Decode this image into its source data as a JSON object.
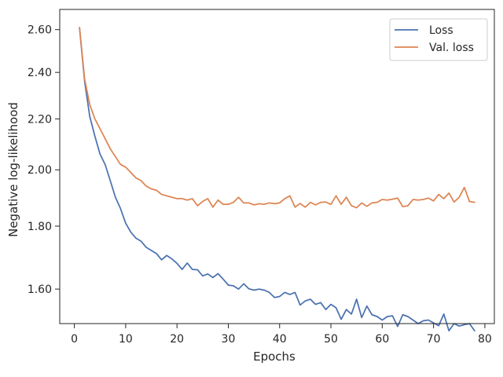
{
  "chart_data": {
    "type": "line",
    "title": "",
    "xlabel": "Epochs",
    "ylabel": "Negative log-likelihood",
    "xlim": [
      -2.85,
      81.85
    ],
    "ylim": [
      1.5,
      2.7
    ],
    "y_scale": "log",
    "grid": false,
    "legend_position": "top-right",
    "x_ticks": [
      {
        "value": 0,
        "label": "0"
      },
      {
        "value": 10,
        "label": "10"
      },
      {
        "value": 20,
        "label": "20"
      },
      {
        "value": 30,
        "label": "30"
      },
      {
        "value": 40,
        "label": "40"
      },
      {
        "value": 50,
        "label": "50"
      },
      {
        "value": 60,
        "label": "60"
      },
      {
        "value": 70,
        "label": "70"
      },
      {
        "value": 80,
        "label": "80"
      }
    ],
    "y_ticks": [
      {
        "value": 1.6,
        "label": "1.60"
      },
      {
        "value": 1.8,
        "label": "1.80"
      },
      {
        "value": 2.0,
        "label": "2.00"
      },
      {
        "value": 2.2,
        "label": "2.20"
      },
      {
        "value": 2.4,
        "label": "2.40"
      },
      {
        "value": 2.6,
        "label": "2.60"
      }
    ],
    "x": [
      1,
      2,
      3,
      4,
      5,
      6,
      7,
      8,
      9,
      10,
      11,
      12,
      13,
      14,
      15,
      16,
      17,
      18,
      19,
      20,
      21,
      22,
      23,
      24,
      25,
      26,
      27,
      28,
      29,
      30,
      31,
      32,
      33,
      34,
      35,
      36,
      37,
      38,
      39,
      40,
      41,
      42,
      43,
      44,
      45,
      46,
      47,
      48,
      49,
      50,
      51,
      52,
      53,
      54,
      55,
      56,
      57,
      58,
      59,
      60,
      61,
      62,
      63,
      64,
      65,
      66,
      67,
      68,
      69,
      70,
      71,
      72,
      73,
      74,
      75,
      76,
      77,
      78
    ],
    "series": [
      {
        "name": "Loss",
        "color": "#4c72b0",
        "values": [
          2.61,
          2.36,
          2.21,
          2.13,
          2.06,
          2.02,
          1.96,
          1.9,
          1.86,
          1.81,
          1.78,
          1.76,
          1.75,
          1.73,
          1.72,
          1.71,
          1.69,
          1.704,
          1.693,
          1.679,
          1.66,
          1.68,
          1.66,
          1.659,
          1.64,
          1.646,
          1.635,
          1.647,
          1.63,
          1.612,
          1.61,
          1.6,
          1.616,
          1.601,
          1.597,
          1.6,
          1.597,
          1.59,
          1.575,
          1.578,
          1.59,
          1.584,
          1.59,
          1.553,
          1.565,
          1.57,
          1.555,
          1.56,
          1.54,
          1.555,
          1.545,
          1.512,
          1.54,
          1.527,
          1.57,
          1.517,
          1.55,
          1.525,
          1.52,
          1.51,
          1.52,
          1.522,
          1.492,
          1.525,
          1.52,
          1.51,
          1.5,
          1.508,
          1.51,
          1.502,
          1.494,
          1.527,
          1.48,
          1.5,
          1.493,
          1.497,
          1.5,
          1.48
        ]
      },
      {
        "name": "Val. loss",
        "color": "#dd8452",
        "values": [
          2.61,
          2.37,
          2.26,
          2.2,
          2.16,
          2.12,
          2.08,
          2.05,
          2.02,
          2.01,
          1.99,
          1.97,
          1.96,
          1.94,
          1.93,
          1.925,
          1.91,
          1.905,
          1.9,
          1.895,
          1.895,
          1.89,
          1.895,
          1.87,
          1.885,
          1.895,
          1.865,
          1.89,
          1.875,
          1.875,
          1.882,
          1.9,
          1.88,
          1.88,
          1.873,
          1.877,
          1.875,
          1.88,
          1.877,
          1.88,
          1.895,
          1.905,
          1.865,
          1.878,
          1.865,
          1.882,
          1.873,
          1.882,
          1.883,
          1.875,
          1.905,
          1.875,
          1.9,
          1.87,
          1.863,
          1.88,
          1.868,
          1.88,
          1.882,
          1.892,
          1.89,
          1.893,
          1.897,
          1.867,
          1.87,
          1.892,
          1.89,
          1.892,
          1.897,
          1.887,
          1.91,
          1.895,
          1.915,
          1.883,
          1.9,
          1.935,
          1.885,
          1.882
        ]
      }
    ]
  }
}
